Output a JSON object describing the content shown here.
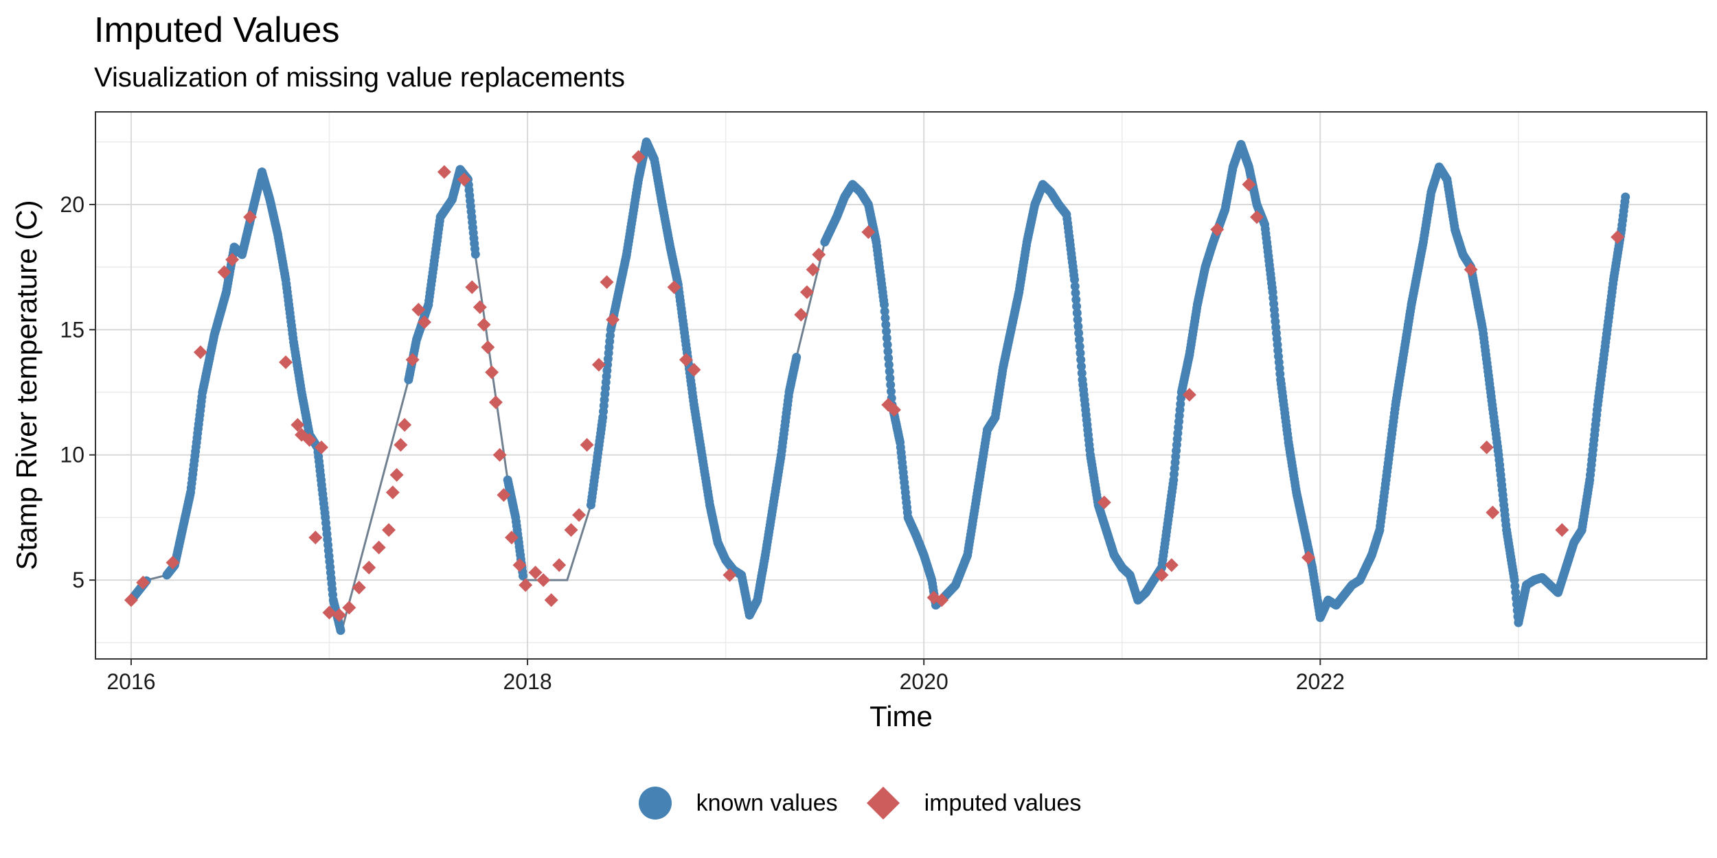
{
  "chart_data": {
    "type": "scatter",
    "title": "Imputed Values",
    "subtitle": "Visualization of missing value replacements",
    "xlabel": "Time",
    "ylabel": "Stamp River temperature (C)",
    "xlim": [
      2015.82,
      2023.95
    ],
    "ylim": [
      1.85,
      23.7
    ],
    "x_ticks": [
      2016,
      2018,
      2020,
      2022
    ],
    "x_tick_labels": [
      "2016",
      "2018",
      "2020",
      "2022"
    ],
    "y_ticks": [
      5,
      10,
      15,
      20
    ],
    "y_tick_labels": [
      "5",
      "10",
      "15",
      "20"
    ],
    "grid": true,
    "legend_position": "bottom",
    "colors": {
      "known": "#4682b4",
      "imputed": "#cd5c5c",
      "line": "#708090"
    },
    "known_curve": [
      [
        2016.0,
        4.2
      ],
      [
        2016.08,
        5.0
      ],
      [
        2016.18,
        5.2
      ],
      [
        2016.22,
        5.6
      ],
      [
        2016.3,
        8.5
      ],
      [
        2016.36,
        12.5
      ],
      [
        2016.42,
        14.8
      ],
      [
        2016.48,
        16.5
      ],
      [
        2016.52,
        18.3
      ],
      [
        2016.56,
        18.0
      ],
      [
        2016.62,
        20.0
      ],
      [
        2016.66,
        21.3
      ],
      [
        2016.7,
        20.2
      ],
      [
        2016.74,
        18.8
      ],
      [
        2016.78,
        17.0
      ],
      [
        2016.82,
        14.5
      ],
      [
        2016.86,
        12.5
      ],
      [
        2016.9,
        10.8
      ],
      [
        2016.94,
        10.3
      ],
      [
        2016.98,
        7.5
      ],
      [
        2017.02,
        4.2
      ],
      [
        2017.06,
        2.9
      ],
      [
        2017.4,
        13.0
      ],
      [
        2017.44,
        14.6
      ],
      [
        2017.5,
        16.0
      ],
      [
        2017.56,
        19.5
      ],
      [
        2017.62,
        20.2
      ],
      [
        2017.66,
        21.4
      ],
      [
        2017.7,
        21.0
      ],
      [
        2017.74,
        17.8
      ],
      [
        2017.9,
        9.0
      ],
      [
        2017.94,
        7.5
      ],
      [
        2017.98,
        5.0
      ],
      [
        2018.2,
        5.0
      ],
      [
        2018.32,
        8.0
      ],
      [
        2018.38,
        11.5
      ],
      [
        2018.42,
        15.0
      ],
      [
        2018.5,
        18.0
      ],
      [
        2018.56,
        21.0
      ],
      [
        2018.6,
        22.5
      ],
      [
        2018.64,
        21.8
      ],
      [
        2018.68,
        20.0
      ],
      [
        2018.72,
        18.3
      ],
      [
        2018.76,
        16.8
      ],
      [
        2018.84,
        12.0
      ],
      [
        2018.88,
        10.0
      ],
      [
        2018.92,
        8.0
      ],
      [
        2018.96,
        6.5
      ],
      [
        2019.0,
        5.8
      ],
      [
        2019.04,
        5.4
      ],
      [
        2019.08,
        5.2
      ],
      [
        2019.12,
        3.6
      ],
      [
        2019.16,
        4.2
      ],
      [
        2019.2,
        6.0
      ],
      [
        2019.24,
        8.0
      ],
      [
        2019.28,
        10.0
      ],
      [
        2019.32,
        12.5
      ],
      [
        2019.36,
        14.0
      ],
      [
        2019.5,
        18.5
      ],
      [
        2019.56,
        19.5
      ],
      [
        2019.6,
        20.3
      ],
      [
        2019.64,
        20.8
      ],
      [
        2019.68,
        20.5
      ],
      [
        2019.72,
        20.0
      ],
      [
        2019.76,
        18.5
      ],
      [
        2019.8,
        16.0
      ],
      [
        2019.84,
        12.0
      ],
      [
        2019.88,
        10.5
      ],
      [
        2019.92,
        7.5
      ],
      [
        2019.96,
        6.8
      ],
      [
        2020.0,
        6.0
      ],
      [
        2020.04,
        5.0
      ],
      [
        2020.06,
        4.0
      ],
      [
        2020.1,
        4.3
      ],
      [
        2020.16,
        4.8
      ],
      [
        2020.22,
        6.0
      ],
      [
        2020.28,
        9.0
      ],
      [
        2020.32,
        11.0
      ],
      [
        2020.36,
        11.5
      ],
      [
        2020.4,
        13.5
      ],
      [
        2020.44,
        15.0
      ],
      [
        2020.48,
        16.5
      ],
      [
        2020.52,
        18.5
      ],
      [
        2020.56,
        20.0
      ],
      [
        2020.6,
        20.8
      ],
      [
        2020.64,
        20.5
      ],
      [
        2020.68,
        20.0
      ],
      [
        2020.72,
        19.6
      ],
      [
        2020.76,
        17.0
      ],
      [
        2020.8,
        13.0
      ],
      [
        2020.84,
        10.0
      ],
      [
        2020.88,
        8.0
      ],
      [
        2020.92,
        7.0
      ],
      [
        2020.96,
        6.0
      ],
      [
        2021.0,
        5.5
      ],
      [
        2021.04,
        5.2
      ],
      [
        2021.08,
        4.2
      ],
      [
        2021.12,
        4.5
      ],
      [
        2021.2,
        5.5
      ],
      [
        2021.26,
        9.0
      ],
      [
        2021.3,
        12.5
      ],
      [
        2021.34,
        14.0
      ],
      [
        2021.38,
        16.0
      ],
      [
        2021.42,
        17.5
      ],
      [
        2021.46,
        18.5
      ],
      [
        2021.52,
        19.8
      ],
      [
        2021.56,
        21.5
      ],
      [
        2021.6,
        22.4
      ],
      [
        2021.64,
        21.5
      ],
      [
        2021.68,
        20.0
      ],
      [
        2021.72,
        19.2
      ],
      [
        2021.76,
        16.5
      ],
      [
        2021.8,
        13.0
      ],
      [
        2021.84,
        10.5
      ],
      [
        2021.88,
        8.5
      ],
      [
        2021.92,
        7.0
      ],
      [
        2021.96,
        5.5
      ],
      [
        2022.0,
        3.5
      ],
      [
        2022.04,
        4.2
      ],
      [
        2022.08,
        4.0
      ],
      [
        2022.12,
        4.4
      ],
      [
        2022.16,
        4.8
      ],
      [
        2022.2,
        5.0
      ],
      [
        2022.26,
        6.0
      ],
      [
        2022.3,
        7.0
      ],
      [
        2022.34,
        9.5
      ],
      [
        2022.38,
        12.0
      ],
      [
        2022.42,
        14.0
      ],
      [
        2022.46,
        16.0
      ],
      [
        2022.52,
        18.5
      ],
      [
        2022.56,
        20.5
      ],
      [
        2022.6,
        21.5
      ],
      [
        2022.64,
        21.0
      ],
      [
        2022.68,
        19.0
      ],
      [
        2022.72,
        18.0
      ],
      [
        2022.76,
        17.5
      ],
      [
        2022.82,
        15.0
      ],
      [
        2022.86,
        12.5
      ],
      [
        2022.9,
        10.0
      ],
      [
        2022.94,
        7.0
      ],
      [
        2022.98,
        5.0
      ],
      [
        2023.0,
        3.3
      ],
      [
        2023.04,
        4.8
      ],
      [
        2023.08,
        5.0
      ],
      [
        2023.12,
        5.1
      ],
      [
        2023.16,
        4.8
      ],
      [
        2023.2,
        4.5
      ],
      [
        2023.24,
        5.5
      ],
      [
        2023.28,
        6.5
      ],
      [
        2023.32,
        7.0
      ],
      [
        2023.36,
        9.0
      ],
      [
        2023.4,
        12.0
      ],
      [
        2023.44,
        14.5
      ],
      [
        2023.48,
        17.0
      ],
      [
        2023.52,
        19.0
      ],
      [
        2023.54,
        20.3
      ]
    ],
    "imputed_curve": [
      [
        2016.0,
        4.2
      ],
      [
        2016.06,
        4.9
      ],
      [
        2016.21,
        5.7
      ],
      [
        2016.35,
        14.1
      ],
      [
        2016.47,
        17.3
      ],
      [
        2016.51,
        17.8
      ],
      [
        2016.6,
        19.5
      ],
      [
        2016.78,
        13.7
      ],
      [
        2016.84,
        11.2
      ],
      [
        2016.86,
        10.8
      ],
      [
        2016.9,
        10.6
      ],
      [
        2016.96,
        10.3
      ],
      [
        2016.93,
        6.7
      ],
      [
        2017.0,
        3.7
      ],
      [
        2017.05,
        3.6
      ],
      [
        2017.1,
        3.9
      ],
      [
        2017.15,
        4.7
      ],
      [
        2017.2,
        5.5
      ],
      [
        2017.25,
        6.3
      ],
      [
        2017.3,
        7.0
      ],
      [
        2017.32,
        8.5
      ],
      [
        2017.34,
        9.2
      ],
      [
        2017.36,
        10.4
      ],
      [
        2017.38,
        11.2
      ],
      [
        2017.42,
        13.8
      ],
      [
        2017.45,
        15.8
      ],
      [
        2017.48,
        15.3
      ],
      [
        2017.58,
        21.3
      ],
      [
        2017.68,
        21.0
      ],
      [
        2017.72,
        16.7
      ],
      [
        2017.76,
        15.9
      ],
      [
        2017.78,
        15.2
      ],
      [
        2017.8,
        14.3
      ],
      [
        2017.82,
        13.3
      ],
      [
        2017.84,
        12.1
      ],
      [
        2017.86,
        10.0
      ],
      [
        2017.88,
        8.4
      ],
      [
        2017.92,
        6.7
      ],
      [
        2017.96,
        5.6
      ],
      [
        2017.99,
        4.8
      ],
      [
        2018.04,
        5.3
      ],
      [
        2018.08,
        5.0
      ],
      [
        2018.12,
        4.2
      ],
      [
        2018.16,
        5.6
      ],
      [
        2018.22,
        7.0
      ],
      [
        2018.26,
        7.6
      ],
      [
        2018.3,
        10.4
      ],
      [
        2018.36,
        13.6
      ],
      [
        2018.4,
        16.9
      ],
      [
        2018.43,
        15.4
      ],
      [
        2018.56,
        21.9
      ],
      [
        2018.74,
        16.7
      ],
      [
        2018.8,
        13.8
      ],
      [
        2018.84,
        13.4
      ],
      [
        2019.02,
        5.2
      ],
      [
        2019.38,
        15.6
      ],
      [
        2019.41,
        16.5
      ],
      [
        2019.44,
        17.4
      ],
      [
        2019.47,
        18.0
      ],
      [
        2019.72,
        18.9
      ],
      [
        2019.82,
        12.0
      ],
      [
        2019.85,
        11.8
      ],
      [
        2020.05,
        4.3
      ],
      [
        2020.09,
        4.2
      ],
      [
        2020.91,
        8.1
      ],
      [
        2021.2,
        5.2
      ],
      [
        2021.25,
        5.6
      ],
      [
        2021.34,
        12.4
      ],
      [
        2021.48,
        19.0
      ],
      [
        2021.64,
        20.8
      ],
      [
        2021.68,
        19.5
      ],
      [
        2021.94,
        5.9
      ],
      [
        2022.76,
        17.4
      ],
      [
        2022.84,
        10.3
      ],
      [
        2022.87,
        7.7
      ],
      [
        2023.22,
        7.0
      ],
      [
        2023.5,
        18.7
      ]
    ],
    "series": [
      {
        "name": "known values",
        "marker": "circle"
      },
      {
        "name": "imputed values",
        "marker": "diamond"
      }
    ]
  }
}
